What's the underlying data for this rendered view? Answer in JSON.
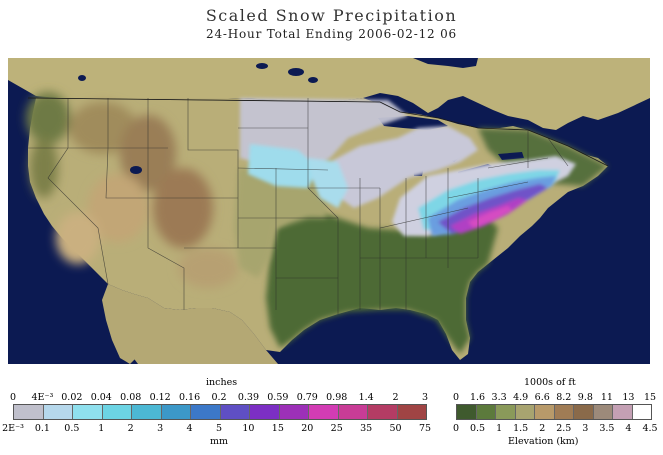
{
  "header": {
    "title": "Scaled Snow Precipitation",
    "subtitle": "24-Hour Total Ending 2006-02-12 06"
  },
  "precip_legend": {
    "top_label": "inches",
    "bottom_label": "mm",
    "inches_ticks": [
      "0",
      "4E⁻³",
      "0.02",
      "0.04",
      "0.08",
      "0.12",
      "0.16",
      "0.2",
      "0.39",
      "0.59",
      "0.79",
      "0.98",
      "1.4",
      "2",
      "3"
    ],
    "mm_ticks": [
      "2E⁻³",
      "0.1",
      "0.5",
      "1",
      "2",
      "3",
      "4",
      "5",
      "10",
      "15",
      "20",
      "25",
      "35",
      "50",
      "75"
    ],
    "colors": [
      "#c0c0cc",
      "#b6d8ec",
      "#8fe0ee",
      "#6cd4e4",
      "#4cb8d4",
      "#3c98c8",
      "#3c78c8",
      "#5f4fc4",
      "#7c2fc4",
      "#9c30b8",
      "#d23cb4",
      "#c83c96",
      "#b43c64",
      "#a04444"
    ]
  },
  "elevation_legend": {
    "top_label": "1000s of ft",
    "bottom_label": "Elevation (km)",
    "ft_ticks": [
      "0",
      "1.6",
      "3.3",
      "4.9",
      "6.6",
      "8.2",
      "9.8",
      "11",
      "13",
      "15"
    ],
    "km_ticks": [
      "0",
      "0.5",
      "1",
      "1.5",
      "2",
      "2.5",
      "3",
      "3.5",
      "4",
      "4.5"
    ],
    "colors": [
      "#3f5a2e",
      "#5c7a3c",
      "#8a9a5a",
      "#a8a470",
      "#b89a6a",
      "#a07c55",
      "#8a6a4a",
      "#9c8a7a",
      "#c4a0b4",
      "#ffffff"
    ]
  },
  "map": {
    "ocean_color": "#0c1a52",
    "land_color": "#b9ae78"
  }
}
